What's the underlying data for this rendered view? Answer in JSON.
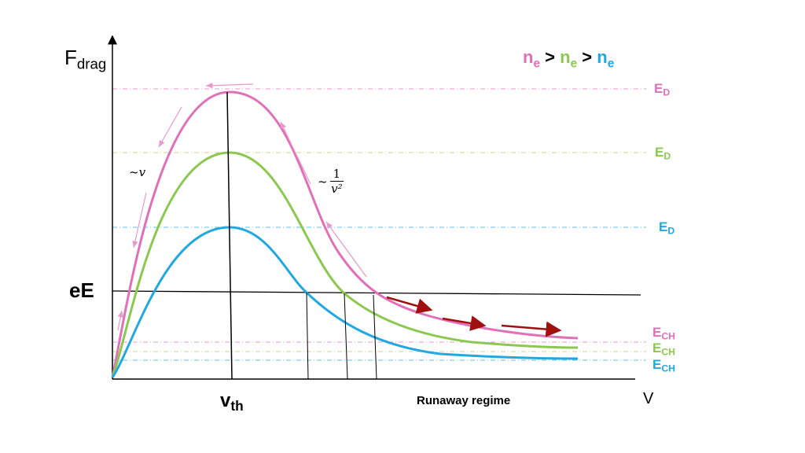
{
  "colors": {
    "high": "#e070b8",
    "mid": "#8cc850",
    "low": "#22a8e0",
    "runaway_arrow": "#a01010",
    "axis": "#000000"
  },
  "axes": {
    "y_label_main": "F",
    "y_label_sub": "drag",
    "x_label": "V",
    "ee_label": "eE",
    "vth_main": "v",
    "vth_sub": "th"
  },
  "legend": {
    "n": "n",
    "sub": "e",
    "gt": ">"
  },
  "levels": {
    "ed_main": "E",
    "ed_sub": "D",
    "ech_main": "E",
    "ech_sub": "CH"
  },
  "annotations": {
    "linear": "~v",
    "inverse_prefix": "~",
    "inverse_num": "1",
    "inverse_den": "v²",
    "runaway": "Runaway regime"
  }
}
